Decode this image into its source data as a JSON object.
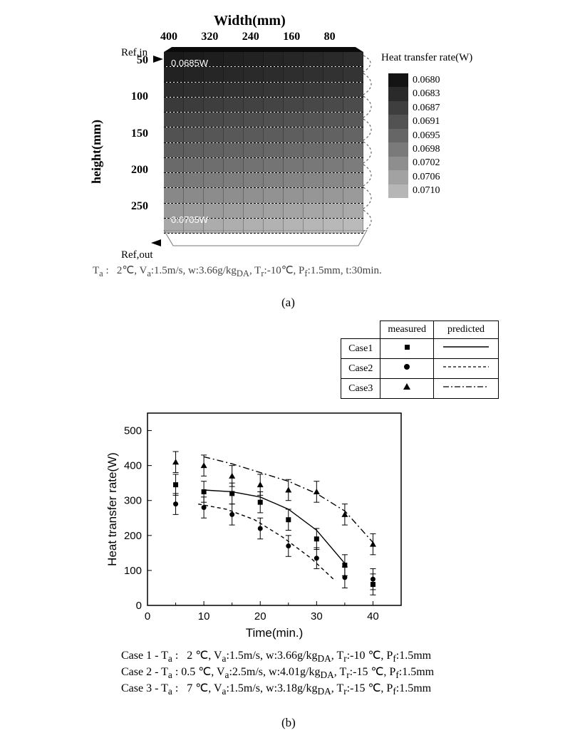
{
  "figure_a": {
    "width_axis": {
      "title": "Width(mm)",
      "ticks": [
        400,
        320,
        240,
        160,
        80
      ]
    },
    "height_axis": {
      "title": "height(mm)",
      "ticks": [
        50,
        100,
        150,
        200,
        250
      ]
    },
    "ref_in_label": "Ref,in",
    "ref_out_label": "Ref,out",
    "overlay_top_value": "0.0685W",
    "overlay_bottom_value": "0.0705W",
    "colorbar": {
      "title": "Heat transfer rate(W)",
      "labels": [
        "0.0680",
        "0.0683",
        "0.0687",
        "0.0691",
        "0.0695",
        "0.0698",
        "0.0702",
        "0.0706",
        "0.0710"
      ],
      "colors": [
        "#141414",
        "#2a2a2a",
        "#3e3e3e",
        "#525252",
        "#666666",
        "#7a7a7a",
        "#8e8e8e",
        "#a2a2a2",
        "#b6b6b6"
      ]
    },
    "heatmap": {
      "n_rows": 12,
      "n_cols": 10,
      "row_shades": [
        "#1a1a1a",
        "#222222",
        "#2d2d2d",
        "#3a3a3a",
        "#474747",
        "#525252",
        "#5e5e5e",
        "#6a6a6a",
        "#787878",
        "#888888",
        "#989898",
        "#a8a8a8"
      ],
      "right_brighten": 18
    },
    "caption": "Ta :   2℃, Va:1.5m/s, w:3.66g/kgDA, Tr:-10℃, Pf:1.5mm, t:30min.",
    "sub_label": "(a)"
  },
  "figure_b": {
    "legend": {
      "header_measured": "measured",
      "header_predicted": "predicted",
      "rows": [
        {
          "name": "Case1",
          "marker": "square",
          "line": "solid"
        },
        {
          "name": "Case2",
          "marker": "circle",
          "line": "dashed"
        },
        {
          "name": "Case3",
          "marker": "triangle",
          "line": "dashdot"
        }
      ]
    },
    "chart": {
      "x_label": "Time(min.)",
      "y_label": "Heat transfer rate(W)",
      "xlim": [
        0,
        45
      ],
      "ylim": [
        0,
        550
      ],
      "xticks": [
        0,
        10,
        20,
        30,
        40
      ],
      "yticks": [
        0,
        100,
        200,
        300,
        400,
        500
      ],
      "tick_fontsize": 15,
      "label_fontsize": 17,
      "marker_size": 7,
      "error_bar": 30,
      "plot_bg": "#ffffff",
      "axis_color": "#000000",
      "series": {
        "case1_measured": {
          "x": [
            5,
            10,
            15,
            20,
            25,
            30,
            35,
            40
          ],
          "y": [
            345,
            325,
            320,
            295,
            245,
            190,
            115,
            60
          ],
          "marker": "square"
        },
        "case2_measured": {
          "x": [
            5,
            10,
            15,
            20,
            25,
            30,
            35,
            40
          ],
          "y": [
            290,
            280,
            260,
            220,
            170,
            135,
            80,
            75
          ],
          "marker": "circle"
        },
        "case3_measured": {
          "x": [
            5,
            10,
            15,
            20,
            25,
            30,
            35,
            40
          ],
          "y": [
            410,
            400,
            370,
            345,
            330,
            325,
            260,
            175
          ],
          "marker": "triangle"
        },
        "case1_pred": {
          "x": [
            10,
            15,
            20,
            25,
            30,
            35
          ],
          "y": [
            330,
            325,
            310,
            275,
            215,
            120
          ],
          "style": "solid"
        },
        "case2_pred": {
          "x": [
            9,
            14,
            19,
            24,
            29,
            33
          ],
          "y": [
            290,
            275,
            245,
            195,
            135,
            75
          ],
          "style": "dashed"
        },
        "case3_pred": {
          "x": [
            10,
            15,
            20,
            25,
            30,
            35,
            40
          ],
          "y": [
            425,
            405,
            380,
            355,
            320,
            270,
            180
          ],
          "style": "dashdot"
        }
      }
    },
    "captions": [
      "Case 1 - Ta :   2 ℃, Va:1.5m/s, w:3.66g/kgDA, Tr:-10 ℃, Pf:1.5mm",
      "Case 2 - Ta : 0.5 ℃, Va:2.5m/s, w:4.01g/kgDA, Tr:-15 ℃, Pf:1.5mm",
      "Case 3 - Ta :   7 ℃, Va:1.5m/s, w:3.18g/kgDA, Tr:-15 ℃, Pf:1.5mm"
    ],
    "sub_label": "(b)"
  }
}
